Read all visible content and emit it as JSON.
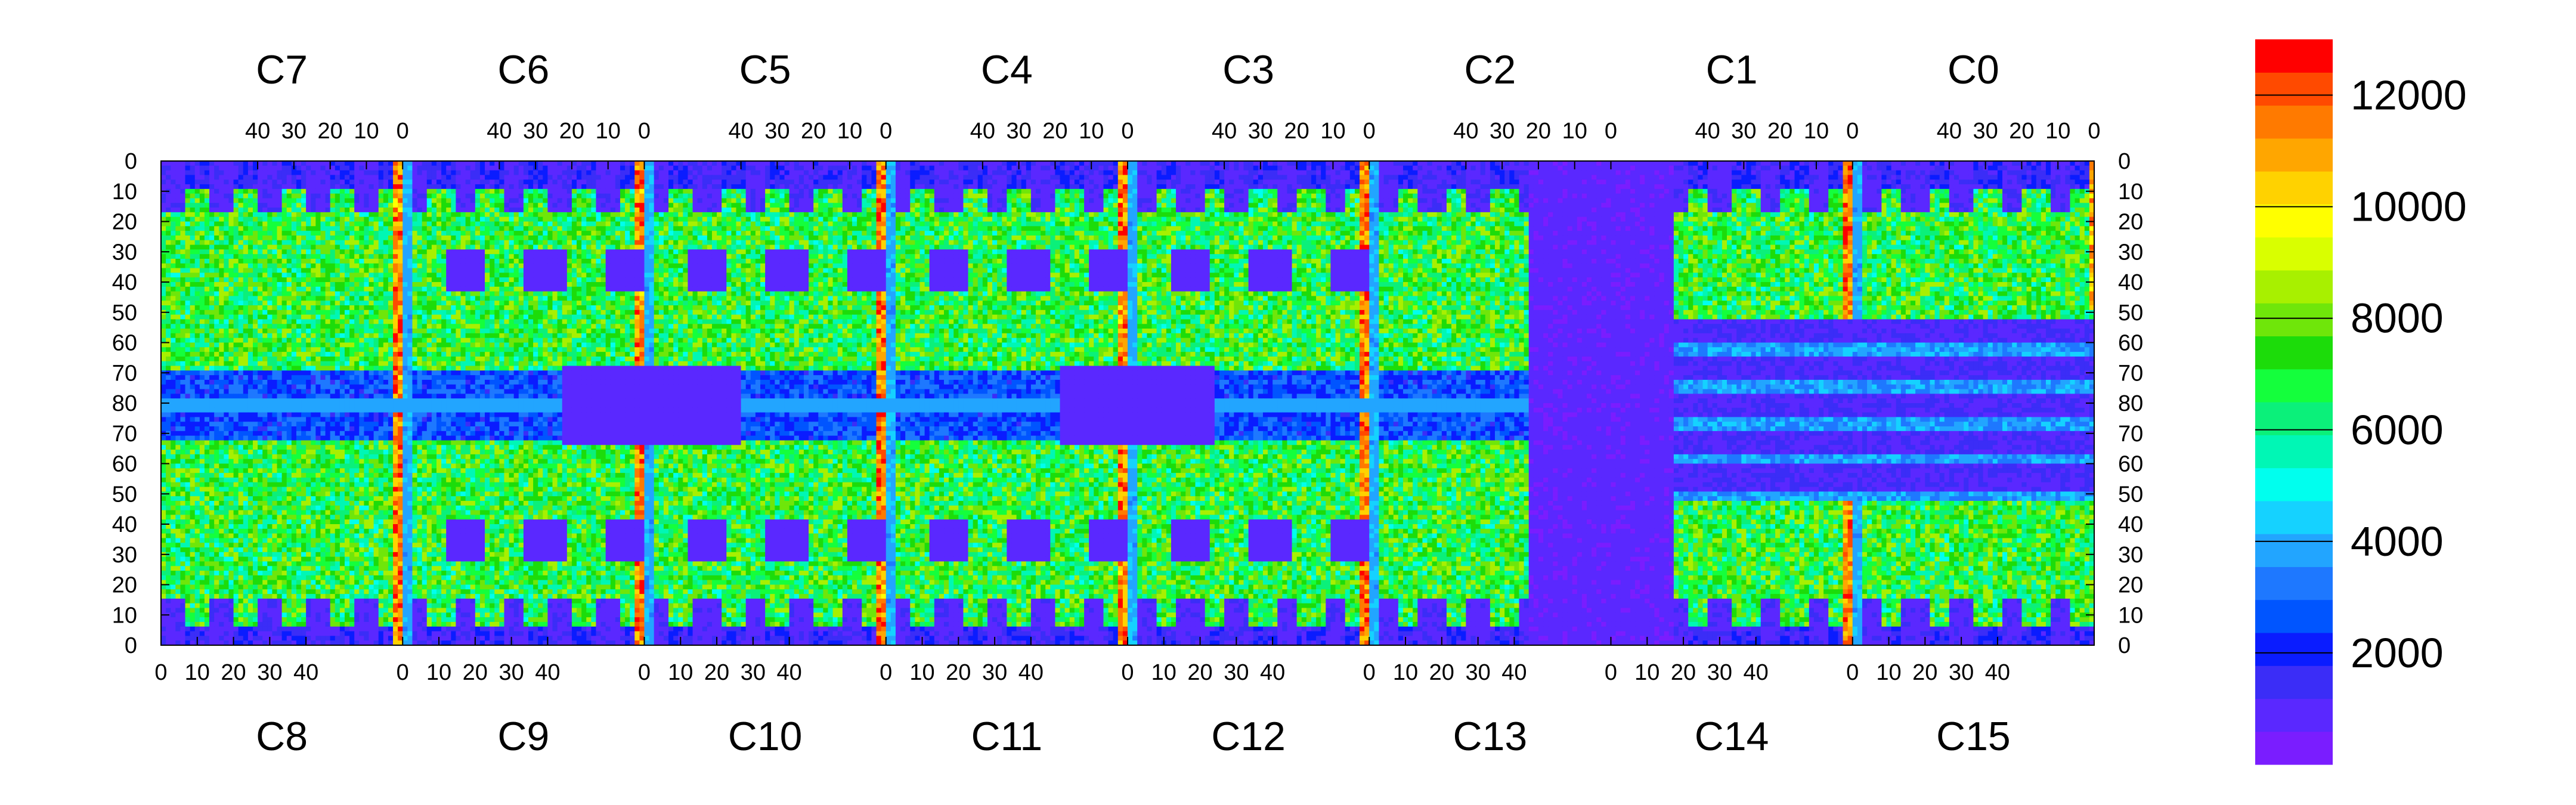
{
  "chart_data": {
    "type": "heatmap",
    "title": "",
    "top_sections": [
      "C7",
      "C6",
      "C5",
      "C4",
      "C3",
      "C2",
      "C1",
      "C0"
    ],
    "bottom_sections": [
      "C8",
      "C9",
      "C10",
      "C11",
      "C12",
      "C13",
      "C14",
      "C15"
    ],
    "top_axis_ticks": [
      "40",
      "30",
      "20",
      "10",
      "0"
    ],
    "bottom_axis_ticks": [
      "0",
      "10",
      "20",
      "30",
      "40"
    ],
    "left_axis_ticks": [
      "0",
      "10",
      "20",
      "30",
      "40",
      "50",
      "60",
      "70",
      "80",
      "70",
      "60",
      "50",
      "40",
      "30",
      "20",
      "10",
      "0"
    ],
    "right_axis_ticks": [
      "0",
      "10",
      "20",
      "30",
      "40",
      "50",
      "60",
      "70",
      "80",
      "70",
      "60",
      "50",
      "40",
      "30",
      "20",
      "10",
      "0"
    ],
    "x_range_per_section": [
      0,
      50
    ],
    "y_range": [
      0,
      80
    ],
    "colorbar": {
      "range": [
        0,
        13000
      ],
      "tick_labels": [
        "12000",
        "10000",
        "8000",
        "6000",
        "4000",
        "2000"
      ],
      "tick_values": [
        12000,
        10000,
        8000,
        6000,
        4000,
        2000
      ],
      "colors": [
        "#7a1dff",
        "#5a28ff",
        "#3b2df7",
        "#0a1cff",
        "#0055ff",
        "#1e78ff",
        "#22a5ff",
        "#15d2ff",
        "#00ffee",
        "#00f7b5",
        "#0bf07a",
        "#14ff3c",
        "#1cdc0a",
        "#6fe60a",
        "#a8f000",
        "#d9ff00",
        "#ffff00",
        "#ffd200",
        "#ffa600",
        "#ff7a00",
        "#ff4a00",
        "#ff0000"
      ]
    },
    "notes": "Hit-occupancy map: 16 sectors (C0–C15), each 50 bins wide and 80 bins tall; high-rate columns (red, ~12000) near sector boundaries, empty low-rate regions (purple) in C13/C14 and central rectangles."
  }
}
